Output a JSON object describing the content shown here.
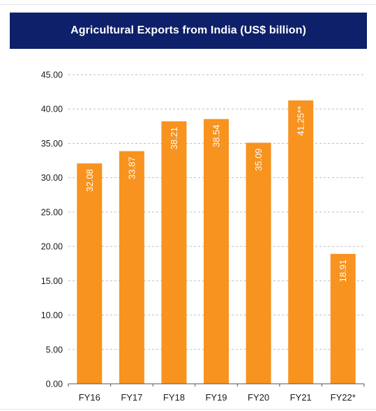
{
  "header": {
    "title": "Agricultural Exports from India (US$ billion)"
  },
  "colors": {
    "header_bg": "#0e2069",
    "bar": "#f7931e",
    "grid": "#bfbfbf",
    "axis": "#555555"
  },
  "chart_data": {
    "type": "bar",
    "title": "Agricultural Exports from India (US$ billion)",
    "xlabel": "",
    "ylabel": "",
    "categories": [
      "FY16",
      "FY17",
      "FY18",
      "FY19",
      "FY20",
      "FY21",
      "FY22*"
    ],
    "values": [
      32.08,
      33.87,
      38.21,
      38.54,
      35.09,
      41.25,
      18.91
    ],
    "data_labels": [
      "32.08",
      "33.87",
      "38.21",
      "38.54",
      "35.09",
      "41.25**",
      "18.91"
    ],
    "ylim": [
      0,
      45
    ],
    "yticks": [
      0,
      5,
      10,
      15,
      20,
      25,
      30,
      35,
      40,
      45
    ],
    "ytick_labels": [
      "0.00",
      "5.00",
      "10.00",
      "15.00",
      "20.00",
      "25.00",
      "30.00",
      "35.00",
      "40.00",
      "45.00"
    ],
    "grid": true,
    "grid_style": "dashed",
    "legend": "none",
    "data_label_orientation": "vertical"
  }
}
